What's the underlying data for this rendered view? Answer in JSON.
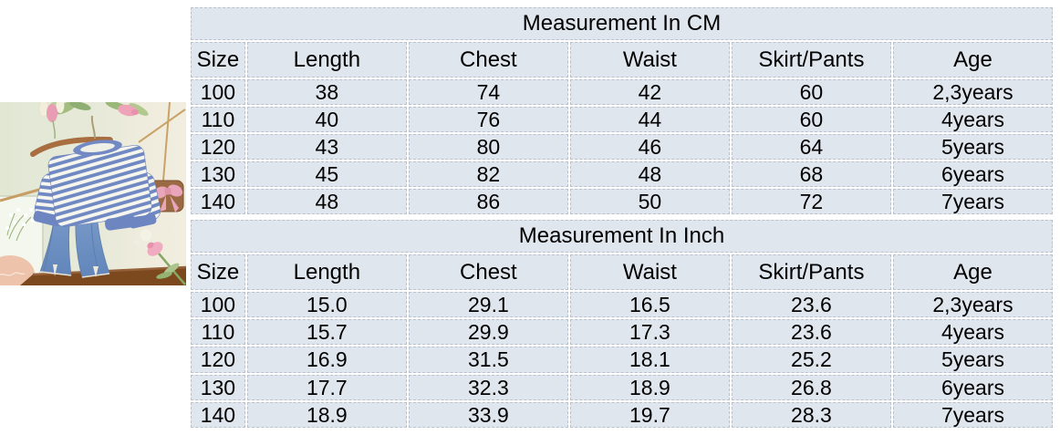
{
  "colors": {
    "page_bg": "#ffffff",
    "cell_bg": "#e0e6ee",
    "cell_border": "#b9c3cf",
    "table_text": "#000000"
  },
  "photo_alt": "Blue and white striped sweatshirt and flared blue jeans hanging on a wooden hanger against a pale green wall with pink tulips, a small brown gift bag with pink bow, a daisy card and a wooden table",
  "tables": {
    "cm": {
      "title": "Measurement In CM",
      "columns": [
        "Size",
        "Length",
        "Chest",
        "Waist",
        "Skirt/Pants",
        "Age"
      ],
      "rows": [
        [
          "100",
          "38",
          "74",
          "42",
          "60",
          "2,3years"
        ],
        [
          "110",
          "40",
          "76",
          "44",
          "60",
          "4years"
        ],
        [
          "120",
          "43",
          "80",
          "46",
          "64",
          "5years"
        ],
        [
          "130",
          "45",
          "82",
          "48",
          "68",
          "6years"
        ],
        [
          "140",
          "48",
          "86",
          "50",
          "72",
          "7years"
        ]
      ]
    },
    "inch": {
      "title": "Measurement In Inch",
      "columns": [
        "Size",
        "Length",
        "Chest",
        "Waist",
        "Skirt/Pants",
        "Age"
      ],
      "rows": [
        [
          "100",
          "15.0",
          "29.1",
          "16.5",
          "23.6",
          "2,3years"
        ],
        [
          "110",
          "15.7",
          "29.9",
          "17.3",
          "23.6",
          "4years"
        ],
        [
          "120",
          "16.9",
          "31.5",
          "18.1",
          "25.2",
          "5years"
        ],
        [
          "130",
          "17.7",
          "32.3",
          "18.9",
          "26.8",
          "6years"
        ],
        [
          "140",
          "18.9",
          "33.9",
          "19.7",
          "28.3",
          "7years"
        ]
      ]
    }
  }
}
